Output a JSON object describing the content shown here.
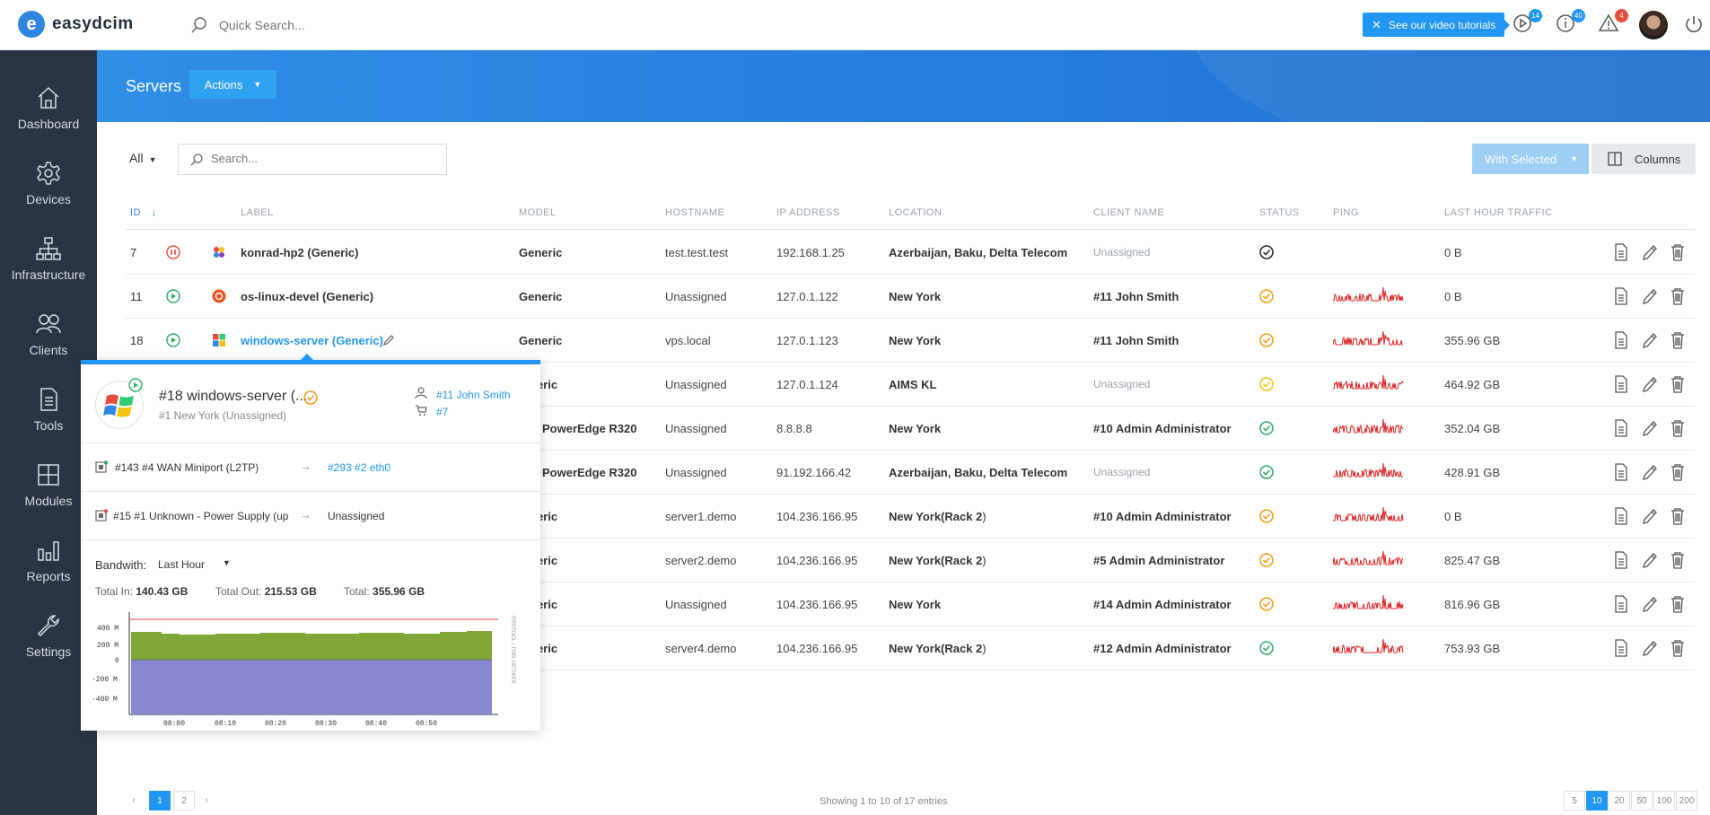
{
  "app": {
    "logo_letter": "e",
    "logo_text": "easydcim"
  },
  "topbar": {
    "search_placeholder": "Quick Search...",
    "tutorial_label": "See our video tutorials",
    "badges": {
      "videos": "14",
      "info": "40",
      "alerts": "4"
    }
  },
  "sidebar": {
    "items": [
      {
        "label": "Dashboard",
        "icon": "home-icon"
      },
      {
        "label": "Devices",
        "icon": "gear-icon"
      },
      {
        "label": "Infrastructure",
        "icon": "sitemap-icon"
      },
      {
        "label": "Clients",
        "icon": "users-icon"
      },
      {
        "label": "Tools",
        "icon": "document-icon"
      },
      {
        "label": "Modules",
        "icon": "grid-icon"
      },
      {
        "label": "Reports",
        "icon": "bar-chart-icon"
      },
      {
        "label": "Settings",
        "icon": "wrench-icon"
      }
    ]
  },
  "header": {
    "title": "Servers",
    "actions_label": "Actions"
  },
  "toolbar": {
    "filter_label": "All",
    "search_placeholder": "Search...",
    "with_selected_label": "With Selected",
    "columns_label": "Columns"
  },
  "table": {
    "columns": [
      "ID",
      "LABEL",
      "MODEL",
      "HOSTNAME",
      "IP ADDRESS",
      "LOCATION",
      "CLIENT NAME",
      "STATUS",
      "PING",
      "LAST HOUR TRAFFIC"
    ],
    "rows": [
      {
        "id": "7",
        "power": "paused",
        "os": "generic",
        "label": "konrad-hp2 (Generic)",
        "model": "Generic",
        "hostname": "test.test.test",
        "ip": "192.168.1.25",
        "location": "Azerbaijan, Baku, Delta Telecom",
        "location_rack": "",
        "client": "Unassigned",
        "client_unassigned": true,
        "status": "black",
        "ping": false,
        "traffic": "0 B"
      },
      {
        "id": "11",
        "power": "on",
        "os": "ubuntu",
        "label": "os-linux-devel (Generic)",
        "model": "Generic",
        "hostname": "Unassigned",
        "ip": "127.0.1.122",
        "location": "New York",
        "location_rack": "",
        "client": "#11 John Smith",
        "client_unassigned": false,
        "status": "orange",
        "ping": true,
        "traffic": "0 B"
      },
      {
        "id": "18",
        "power": "on",
        "os": "windows",
        "label": "windows-server (Generic)",
        "model": "Generic",
        "hostname": "vps.local",
        "ip": "127.0.1.123",
        "location": "New York",
        "location_rack": "",
        "client": "#11 John Smith",
        "client_unassigned": false,
        "status": "orange",
        "ping": true,
        "traffic": "355.96 GB"
      },
      {
        "id": "",
        "power": "",
        "os": "",
        "label": "",
        "model": "eric",
        "hostname": "Unassigned",
        "ip": "127.0.1.124",
        "location": "AIMS KL",
        "location_rack": "",
        "client": "Unassigned",
        "client_unassigned": true,
        "status": "yellow",
        "ping": true,
        "traffic": "464.92 GB"
      },
      {
        "id": "",
        "power": "",
        "os": "",
        "label": "",
        "model": "PowerEdge R320",
        "hostname": "Unassigned",
        "ip": "8.8.8.8",
        "location": "New York",
        "location_rack": "",
        "client": "#10 Admin Administrator",
        "client_unassigned": false,
        "status": "green",
        "ping": true,
        "traffic": "352.04 GB"
      },
      {
        "id": "",
        "power": "",
        "os": "",
        "label": "",
        "model": "PowerEdge R320",
        "hostname": "Unassigned",
        "ip": "91.192.166.42",
        "location": "Azerbaijan, Baku, Delta Telecom",
        "location_rack": "",
        "client": "Unassigned",
        "client_unassigned": true,
        "status": "green",
        "ping": true,
        "traffic": "428.91 GB"
      },
      {
        "id": "",
        "power": "",
        "os": "",
        "label": "",
        "model": "eric",
        "hostname": "server1.demo",
        "ip": "104.236.166.95",
        "location": "New York(",
        "location_rack": "Rack 2",
        "client": "#10 Admin Administrator",
        "client_unassigned": false,
        "status": "orange",
        "ping": true,
        "traffic": "0 B"
      },
      {
        "id": "",
        "power": "",
        "os": "",
        "label": "",
        "model": "eric",
        "hostname": "server2.demo",
        "ip": "104.236.166.95",
        "location": "New York(",
        "location_rack": "Rack 2",
        "client": "#5 Admin Administrator",
        "client_unassigned": false,
        "status": "orange",
        "ping": true,
        "traffic": "825.47 GB"
      },
      {
        "id": "",
        "power": "",
        "os": "",
        "label": "",
        "model": "eric",
        "hostname": "Unassigned",
        "ip": "104.236.166.95",
        "location": "New York",
        "location_rack": "",
        "client": "#14 Admin Administrator",
        "client_unassigned": false,
        "status": "orange",
        "ping": true,
        "traffic": "816.96 GB"
      },
      {
        "id": "",
        "power": "",
        "os": "",
        "label": "",
        "model": "eric",
        "hostname": "server4.demo",
        "ip": "104.236.166.95",
        "location": "New York(",
        "location_rack": "Rack 2",
        "client": "#12 Admin Administrator",
        "client_unassigned": false,
        "status": "green",
        "ping": true,
        "traffic": "753.93 GB"
      }
    ]
  },
  "popover": {
    "title": "#18 windows-server (...",
    "subtitle": "#1 New York (Unassigned)",
    "client_link": "#11 John Smith",
    "order_link": "#7",
    "port1_label": "#143 #4 WAN Miniport (L2TP)",
    "port1_target": "#293 #2 eth0",
    "port2_label": "#15 #1 Unknown - Power Supply (up",
    "port2_target": "Unassigned",
    "bandwidth_label": "Bandwith:",
    "bandwidth_range": "Last Hour",
    "total_in_label": "Total In:",
    "total_in": "140.43 GB",
    "total_out_label": "Total Out:",
    "total_out": "215.53 GB",
    "total_label": "Total:",
    "total": "355.96 GB",
    "chart_side_label": "RRDTOOL / TOBI OETIKER",
    "chart_y_ticks": [
      "400 M",
      "200 M",
      "0",
      "-200 M",
      "-400 M"
    ],
    "chart_x_ticks": [
      "08:00",
      "08:10",
      "08:20",
      "08:30",
      "08:40",
      "08:50"
    ]
  },
  "pagination": {
    "pages": [
      "1",
      "2"
    ],
    "summary": "Showing 1 to 10 of 17 entries",
    "page_sizes": [
      "5",
      "10",
      "20",
      "50",
      "100",
      "200"
    ],
    "active_size": "10"
  },
  "colors": {
    "accent": "#2196f3",
    "sidebar": "#2a3544",
    "status_orange": "#f39c12",
    "status_green": "#27ae60",
    "status_yellow": "#f1c40f",
    "ping_red": "#e02020"
  }
}
